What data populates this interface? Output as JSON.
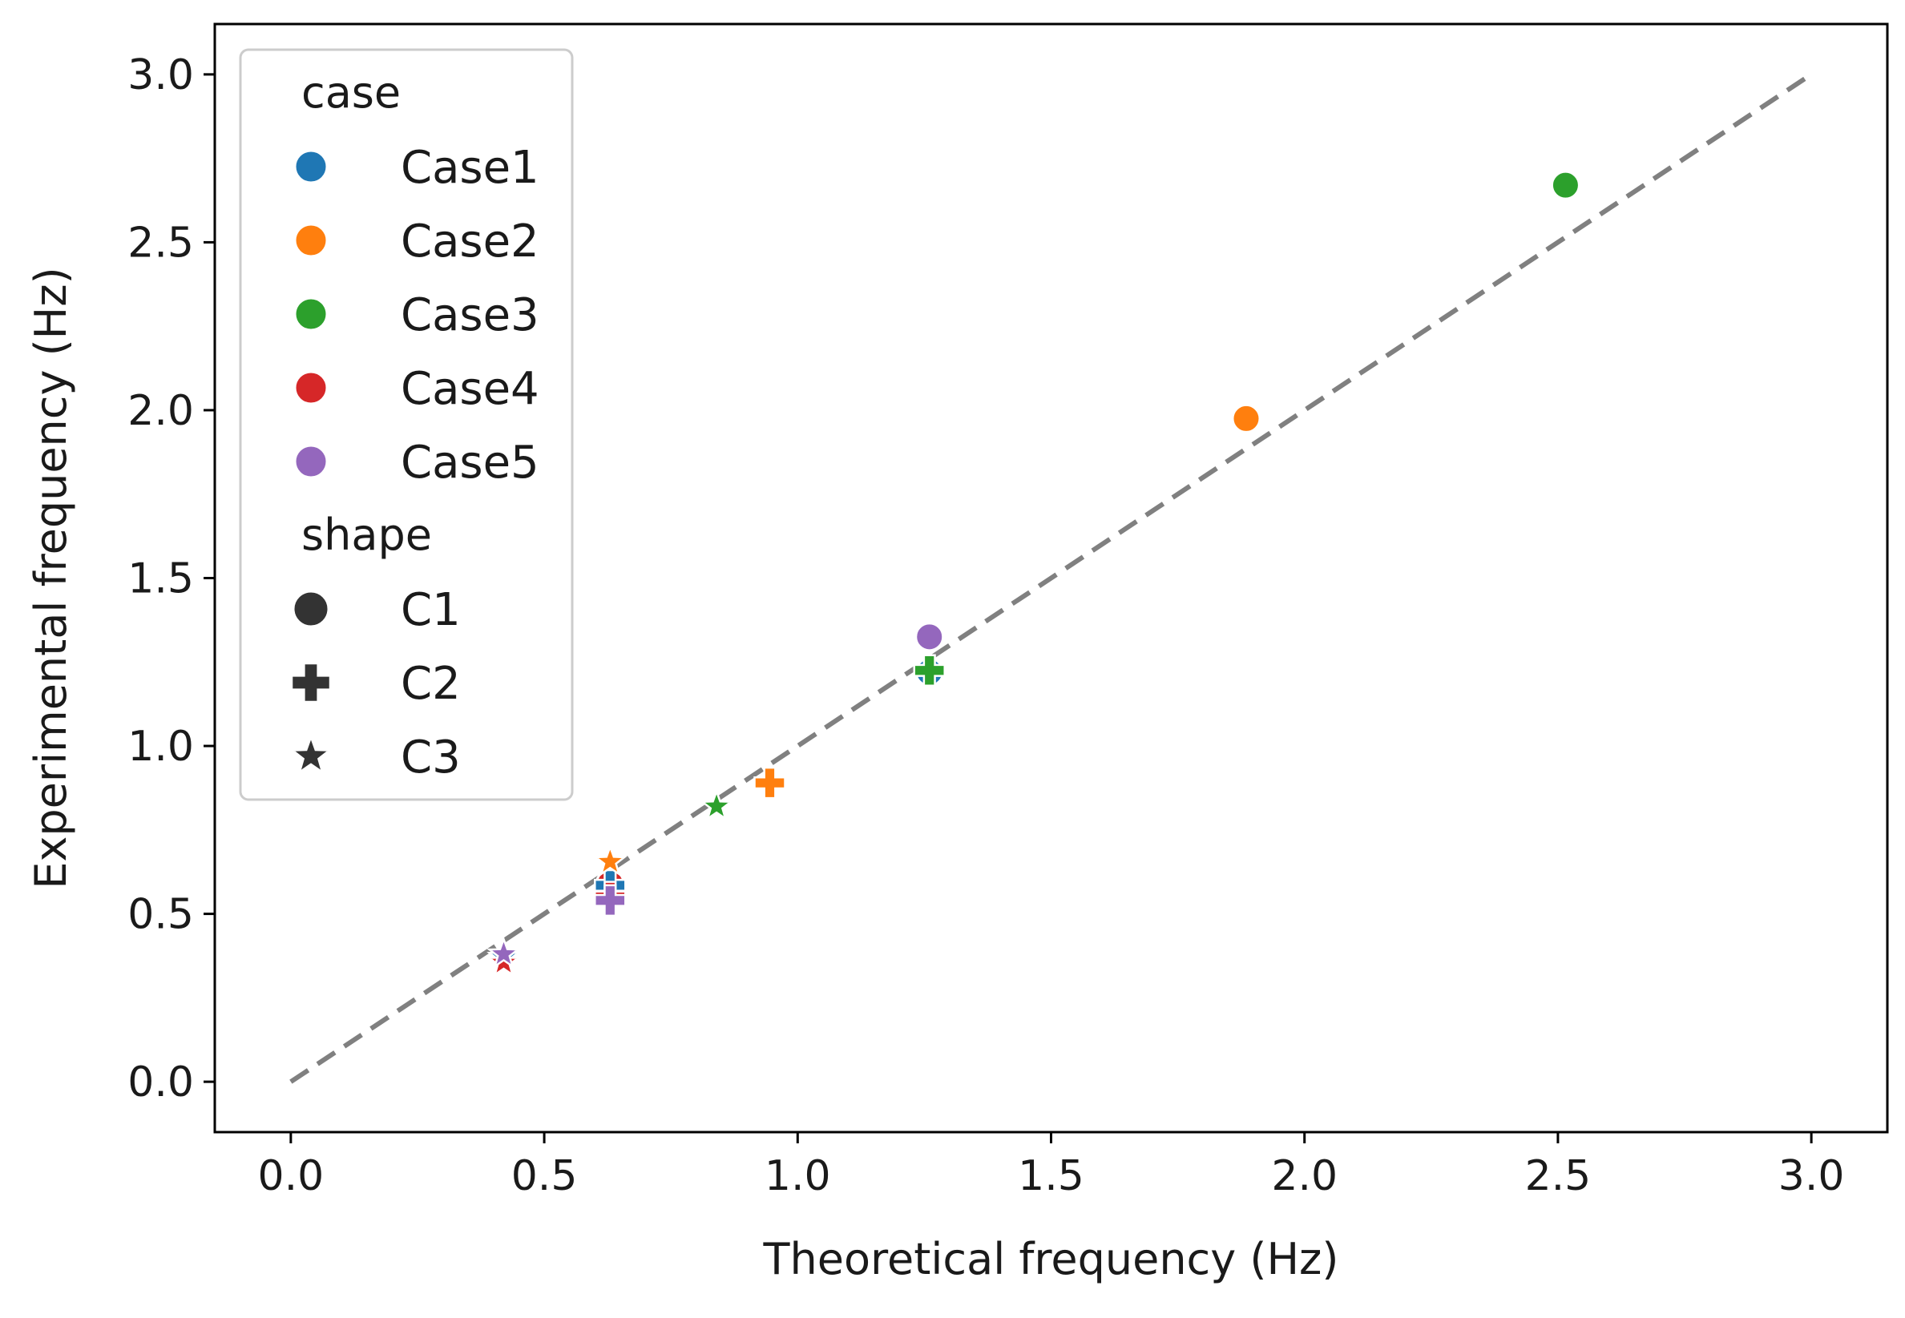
{
  "chart_data": {
    "type": "scatter",
    "title": "",
    "xlabel": "Theoretical frequency (Hz)",
    "ylabel": "Experimental frequency (Hz)",
    "xlim": [
      -0.15,
      3.15
    ],
    "ylim": [
      -0.15,
      3.15
    ],
    "xticks": [
      0.0,
      0.5,
      1.0,
      1.5,
      2.0,
      2.5,
      3.0
    ],
    "yticks": [
      0.0,
      0.5,
      1.0,
      1.5,
      2.0,
      2.5,
      3.0
    ],
    "xtick_labels": [
      "0.0",
      "0.5",
      "1.0",
      "1.5",
      "2.0",
      "2.5",
      "3.0"
    ],
    "ytick_labels": [
      "0.0",
      "0.5",
      "1.0",
      "1.5",
      "2.0",
      "2.5",
      "3.0"
    ],
    "grid": false,
    "reference_line": {
      "x": [
        0,
        3
      ],
      "y": [
        0,
        3
      ],
      "style": "dashed",
      "color": "#808080"
    },
    "legend": {
      "position": "top-left",
      "case_title": "case",
      "cases": [
        {
          "label": "Case1",
          "color": "#1f77b4"
        },
        {
          "label": "Case2",
          "color": "#ff7f0e"
        },
        {
          "label": "Case3",
          "color": "#2ca02c"
        },
        {
          "label": "Case4",
          "color": "#d62728"
        },
        {
          "label": "Case5",
          "color": "#9467bd"
        }
      ],
      "shape_title": "shape",
      "shapes": [
        {
          "label": "C1",
          "marker": "circle"
        },
        {
          "label": "C2",
          "marker": "plus"
        },
        {
          "label": "C3",
          "marker": "star"
        }
      ],
      "marker_color": "#333333"
    },
    "points": [
      {
        "case": "Case1",
        "shape": "C1",
        "x": 1.26,
        "y": 1.22,
        "color": "#1f77b4"
      },
      {
        "case": "Case2",
        "shape": "C1",
        "x": 1.885,
        "y": 1.975,
        "color": "#ff7f0e"
      },
      {
        "case": "Case3",
        "shape": "C1",
        "x": 2.515,
        "y": 2.67,
        "color": "#2ca02c"
      },
      {
        "case": "Case4",
        "shape": "C1",
        "x": 0.63,
        "y": 0.59,
        "color": "#d62728"
      },
      {
        "case": "Case5",
        "shape": "C1",
        "x": 1.26,
        "y": 1.325,
        "color": "#9467bd"
      },
      {
        "case": "Case1",
        "shape": "C2",
        "x": 0.63,
        "y": 0.585,
        "color": "#1f77b4"
      },
      {
        "case": "Case2",
        "shape": "C2",
        "x": 0.945,
        "y": 0.89,
        "color": "#ff7f0e"
      },
      {
        "case": "Case3",
        "shape": "C2",
        "x": 1.26,
        "y": 1.225,
        "color": "#2ca02c"
      },
      {
        "case": "Case4",
        "shape": "C2",
        "x": 0.63,
        "y": 0.55,
        "color": "#d62728"
      },
      {
        "case": "Case5",
        "shape": "C2",
        "x": 0.63,
        "y": 0.54,
        "color": "#9467bd"
      },
      {
        "case": "Case1",
        "shape": "C3",
        "x": 0.42,
        "y": 0.37,
        "color": "#1f77b4"
      },
      {
        "case": "Case2",
        "shape": "C3",
        "x": 0.63,
        "y": 0.655,
        "color": "#ff7f0e"
      },
      {
        "case": "Case3",
        "shape": "C3",
        "x": 0.84,
        "y": 0.82,
        "color": "#2ca02c"
      },
      {
        "case": "Case4",
        "shape": "C3",
        "x": 0.42,
        "y": 0.355,
        "color": "#d62728"
      },
      {
        "case": "Case5",
        "shape": "C3",
        "x": 0.42,
        "y": 0.38,
        "color": "#9467bd"
      }
    ]
  }
}
